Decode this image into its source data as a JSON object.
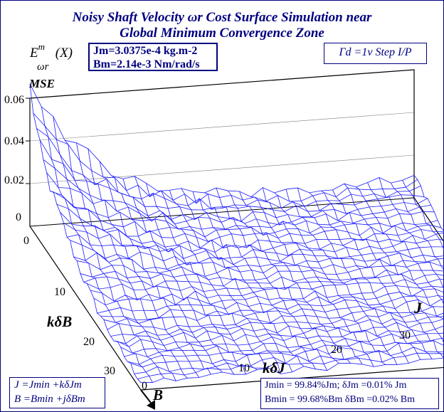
{
  "chart_data": {
    "type": "surface",
    "title_line1": "Noisy Shaft Velocity ωr Cost Surface Simulation near",
    "title_line2": "Global Minimum Convergence Zone",
    "z_axis_title": "MSE",
    "z_ticks": [
      "0",
      "0.02",
      "0.04",
      "0.06"
    ],
    "zlim": [
      0,
      0.06
    ],
    "b_axis_label": "kδB",
    "b_axis_name": "B",
    "b_ticks": [
      "0",
      "10",
      "20",
      "30"
    ],
    "j_axis_label": "kδJ",
    "j_axis_name": "J",
    "j_ticks": [
      "10",
      "20",
      "30"
    ],
    "grid_size": 34,
    "surface_color": "#1a1aff",
    "peak_mse": 0.06,
    "floor_mse": 0.004,
    "noise_amplitude": 0.006
  },
  "function_label": {
    "base": "E",
    "sup": "m",
    "sub": "ωr",
    "arg": "(X)"
  },
  "params_box": {
    "line1": "Jm=3.0375e-4 kg.m-2",
    "line2": "Bm=2.14e-3 Nm/rad/s"
  },
  "input_box": {
    "text": "Γd =1v Step I/P"
  },
  "def_box": {
    "line1": "J =Jmin +kδJm",
    "line2": "B =Bmin +jδBm"
  },
  "res_box": {
    "line1": "Jmin = 99.84%Jm; δJm =0.01% Jm",
    "line2": "Bmin = 99.68%Bm δBm =0.02% Bm"
  }
}
